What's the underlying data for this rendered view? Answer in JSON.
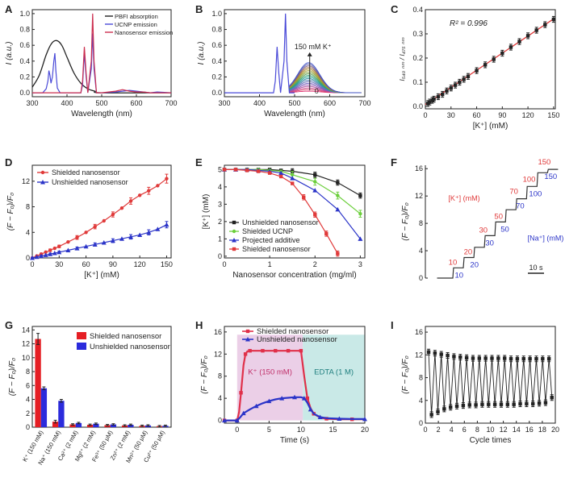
{
  "panels": [
    {
      "letter": "A",
      "chart_data": {
        "type": "line",
        "xlabel": "Wavelength (nm)",
        "ylabel": "I (a.u.)",
        "xlim": [
          300,
          700
        ],
        "ylim": [
          -0.05,
          1.05
        ],
        "xticks": [
          300,
          400,
          500,
          600,
          700
        ],
        "yticks": [
          0.0,
          0.2,
          0.4,
          0.6,
          0.8,
          1.0
        ],
        "legend": "top-right",
        "series": [
          {
            "name": "PBFI absorption",
            "color": "#222222",
            "x": [
              300,
              320,
              340,
              355,
              370,
              385,
              400,
              420,
              440,
              460,
              480,
              500,
              700
            ],
            "y": [
              0.07,
              0.22,
              0.48,
              0.62,
              0.66,
              0.6,
              0.45,
              0.25,
              0.12,
              0.05,
              0.02,
              0.0,
              0.0
            ]
          },
          {
            "name": "UCNP emission",
            "color": "#4a4ad8",
            "x": [
              300,
              330,
              340,
              345,
              348,
              351,
              354,
              358,
              362,
              365,
              368,
              372,
              380,
              400,
              440,
              445,
              450,
              455,
              460,
              470,
              474,
              478,
              485,
              500,
              540,
              560,
              580,
              600,
              620,
              640,
              660,
              700
            ],
            "y": [
              0,
              0,
              0.05,
              0.15,
              0.28,
              0.22,
              0.12,
              0.2,
              0.4,
              0.5,
              0.28,
              0.06,
              0,
              0,
              0,
              0.1,
              0.5,
              0.2,
              0,
              0.3,
              0.75,
              0.3,
              0,
              0,
              0.01,
              0.02,
              0.03,
              0.02,
              0.01,
              0,
              0.01,
              0
            ],
            "smooth": false
          },
          {
            "name": "Nanosensor emission",
            "color": "#cc2f4f",
            "x": [
              300,
              440,
              445,
              450,
              455,
              460,
              470,
              474,
              478,
              485,
              500,
              540,
              560,
              580,
              600,
              620,
              640,
              700
            ],
            "y": [
              0,
              0,
              0.15,
              0.58,
              0.25,
              0,
              0.4,
              1.0,
              0.4,
              0,
              0,
              0.02,
              0.04,
              0.02,
              0.01,
              0.01,
              0,
              0
            ],
            "smooth": false
          }
        ]
      }
    },
    {
      "letter": "B",
      "chart_data": {
        "type": "line",
        "xlabel": "Wavelength (nm)",
        "ylabel": "I (a.u.)",
        "xlim": [
          300,
          700
        ],
        "ylim": [
          -0.05,
          1.05
        ],
        "xticks": [
          300,
          400,
          500,
          600,
          700
        ],
        "yticks": [
          0.0,
          0.2,
          0.4,
          0.6,
          0.8,
          1.0
        ],
        "annotations": [
          "150 mM K⁺",
          "0"
        ],
        "peak_series": {
          "color": "#4a4ad8",
          "x": [
            300,
            440,
            445,
            450,
            455,
            460,
            470,
            474,
            478,
            485,
            500
          ],
          "y": [
            0,
            0,
            0.15,
            0.58,
            0.25,
            0,
            0.4,
            1.0,
            0.4,
            0,
            0
          ]
        },
        "family": {
          "center": 540,
          "width": 45,
          "start": 485,
          "end": 690,
          "amplitudes": [
            0.02,
            0.04,
            0.06,
            0.08,
            0.1,
            0.12,
            0.14,
            0.16,
            0.18,
            0.2,
            0.22,
            0.24,
            0.26,
            0.28,
            0.3,
            0.32,
            0.34,
            0.36,
            0.38
          ],
          "colors": [
            "#e03070",
            "#d8406a",
            "#c8488a",
            "#b050a0",
            "#9058b0",
            "#7060c0",
            "#6870b8",
            "#5080b0",
            "#3090a0",
            "#20a090",
            "#30a070",
            "#60a050",
            "#80a040",
            "#a0a030",
            "#b09030",
            "#a07040",
            "#806080",
            "#6060b0",
            "#3d50c8"
          ]
        }
      }
    },
    {
      "letter": "C",
      "chart_data": {
        "type": "scatter",
        "xlabel": "[K⁺] (mM)",
        "ylabel": "I₅₄₀ ₙₘ / I₄₇₅ ₙₘ",
        "xlim": [
          0,
          152
        ],
        "ylim": [
          -0.01,
          0.4
        ],
        "xticks": [
          0,
          30,
          60,
          90,
          120,
          150
        ],
        "yticks": [
          0.0,
          0.1,
          0.2,
          0.3,
          0.4
        ],
        "annotation": "R² = 0.996",
        "fit": {
          "x": [
            0,
            150
          ],
          "y": [
            0.008,
            0.362
          ],
          "color": "#e03a3a"
        },
        "x": [
          3,
          5,
          8,
          10,
          15,
          20,
          25,
          30,
          35,
          40,
          45,
          50,
          60,
          70,
          80,
          90,
          100,
          110,
          120,
          130,
          140,
          150
        ],
        "y": [
          0.012,
          0.018,
          0.025,
          0.03,
          0.04,
          0.05,
          0.064,
          0.076,
          0.088,
          0.1,
          0.112,
          0.124,
          0.148,
          0.172,
          0.195,
          0.22,
          0.245,
          0.268,
          0.292,
          0.315,
          0.338,
          0.36
        ],
        "err": 0.012
      }
    },
    {
      "letter": "D",
      "chart_data": {
        "type": "line",
        "xlabel": "[K⁺] (mM)",
        "ylabel": "(F − F₀)/F₀",
        "xlim": [
          0,
          155
        ],
        "ylim": [
          0,
          14.5
        ],
        "xticks": [
          0,
          30,
          60,
          90,
          120,
          150
        ],
        "yticks": [
          0,
          4,
          8,
          12
        ],
        "legend": "top-left",
        "series": [
          {
            "name": "Shielded nanosensor",
            "color": "#e03a3a",
            "x": [
              0,
              5,
              10,
              15,
              20,
              25,
              30,
              40,
              50,
              60,
              70,
              80,
              90,
              100,
              110,
              120,
              130,
              140,
              150
            ],
            "y": [
              0,
              0.3,
              0.6,
              0.9,
              1.2,
              1.5,
              1.8,
              2.5,
              3.2,
              4.0,
              4.9,
              5.8,
              6.8,
              7.8,
              8.9,
              9.8,
              10.5,
              11.3,
              12.4
            ],
            "err": [
              0.1,
              0.1,
              0.15,
              0.15,
              0.2,
              0.2,
              0.2,
              0.25,
              0.3,
              0.3,
              0.35,
              0.35,
              0.4,
              0.45,
              0.5,
              0.5,
              0.55,
              0.6,
              0.7
            ]
          },
          {
            "name": "Unshielded nanosensor",
            "color": "#2b34c8",
            "x": [
              0,
              5,
              10,
              15,
              20,
              25,
              30,
              40,
              50,
              60,
              70,
              80,
              90,
              100,
              110,
              120,
              130,
              140,
              150
            ],
            "y": [
              0,
              0.15,
              0.3,
              0.45,
              0.6,
              0.75,
              0.9,
              1.2,
              1.5,
              1.8,
              2.1,
              2.4,
              2.7,
              3.0,
              3.3,
              3.6,
              4.0,
              4.5,
              5.2
            ],
            "err": [
              0.1,
              0.1,
              0.1,
              0.1,
              0.15,
              0.15,
              0.15,
              0.2,
              0.2,
              0.25,
              0.25,
              0.3,
              0.3,
              0.35,
              0.35,
              0.4,
              0.4,
              0.45,
              0.5
            ]
          }
        ]
      }
    },
    {
      "letter": "E",
      "chart_data": {
        "type": "line",
        "xlabel": "Nanosensor concentration (mg/ml)",
        "ylabel": "[K⁺] (mM)",
        "xlim": [
          0,
          3.1
        ],
        "ylim": [
          -0.1,
          5.25
        ],
        "xticks": [
          0,
          1,
          2,
          3
        ],
        "yticks": [
          0,
          1,
          2,
          3,
          4,
          5
        ],
        "legend": "bottom-left",
        "series": [
          {
            "name": "Unshielded nanosensor",
            "color": "#222222",
            "x": [
              0,
              0.25,
              0.5,
              0.75,
              1,
              1.25,
              1.5,
              2,
              2.5,
              3
            ],
            "y": [
              5,
              5,
              5,
              5,
              5,
              4.95,
              4.9,
              4.7,
              4.25,
              3.5
            ],
            "err": 0.15
          },
          {
            "name": "Shielded UCNP",
            "color": "#6ccf3c",
            "x": [
              0,
              0.25,
              0.5,
              0.75,
              1,
              1.25,
              1.5,
              2,
              2.5,
              3
            ],
            "y": [
              5,
              5,
              5,
              5,
              4.95,
              4.9,
              4.7,
              4.3,
              3.5,
              2.45
            ],
            "err": 0.2
          },
          {
            "name": "Projected additive",
            "color": "#2b34c8",
            "x": [
              0,
              0.25,
              0.5,
              0.75,
              1,
              1.25,
              1.5,
              2,
              2.5,
              3
            ],
            "y": [
              5,
              5,
              5,
              4.95,
              4.9,
              4.8,
              4.5,
              3.8,
              2.7,
              1.0
            ],
            "err": 0
          },
          {
            "name": "Shielded nanosensor",
            "color": "#e03a3a",
            "x": [
              0,
              0.25,
              0.5,
              0.75,
              1,
              1.25,
              1.5,
              1.75,
              2,
              2.25,
              2.5
            ],
            "y": [
              5,
              5,
              4.95,
              4.9,
              4.8,
              4.6,
              4.2,
              3.4,
              2.4,
              1.3,
              0.15
            ],
            "err": 0.15
          }
        ]
      }
    },
    {
      "letter": "F",
      "chart_data": {
        "type": "line",
        "ylabel": "(F − F₀)/F₀",
        "ylim": [
          0,
          16.5
        ],
        "yticks": [
          0,
          4,
          8,
          12,
          16
        ],
        "scale_bar_label": "10 s",
        "series_labels": {
          "k": "[K⁺] (mM)",
          "na": "[Na⁺] (mM)"
        },
        "steps": [
          0,
          1.5,
          3,
          4.5,
          6.2,
          8.2,
          10,
          11.6,
          13.4,
          15.4,
          15.9
        ],
        "k_labels": [
          "10",
          "20",
          "30",
          "50",
          "70",
          "100",
          "150"
        ],
        "na_labels": [
          "10",
          "20",
          "30",
          "50",
          "70",
          "100",
          "150"
        ]
      }
    },
    {
      "letter": "G",
      "chart_data": {
        "type": "bar",
        "ylabel": "(F − F₀)/F₀",
        "ylim": [
          0,
          14.5
        ],
        "yticks": [
          0,
          2,
          4,
          6,
          8,
          10,
          12,
          14
        ],
        "legend": "top-right",
        "categories": [
          "K⁺ (150 mM)",
          "Na⁺ (150 mM)",
          "Ca²⁺ (2 mM)",
          "Mg²⁺ (2 mM)",
          "Fe³⁺ (50 μM)",
          "Zn²⁺ (2 mM)",
          "Mn²⁺ (50 μM)",
          "Cu²⁺ (50 μM)"
        ],
        "series": [
          {
            "name": "Shielded nanosensor",
            "color": "#e51e24",
            "values": [
              12.7,
              0.8,
              0.4,
              0.35,
              0.3,
              0.25,
              0.2,
              0.15
            ],
            "err": [
              0.8,
              0.2,
              0.1,
              0.1,
              0.1,
              0.1,
              0.1,
              0.1
            ]
          },
          {
            "name": "Unshielded nanosensor",
            "color": "#2b2bdc",
            "values": [
              5.6,
              3.8,
              0.6,
              0.5,
              0.4,
              0.35,
              0.25,
              0.2
            ],
            "err": [
              0.2,
              0.2,
              0.1,
              0.1,
              0.1,
              0.1,
              0.1,
              0.1
            ]
          }
        ]
      }
    },
    {
      "letter": "H",
      "chart_data": {
        "type": "line",
        "xlabel": "Time (s)",
        "ylabel": "(F − F₀)/F₀",
        "xlim": [
          -2,
          20
        ],
        "ylim": [
          -0.5,
          17
        ],
        "xticks": [
          0,
          5,
          10,
          15,
          20
        ],
        "yticks": [
          0,
          4,
          8,
          12,
          16
        ],
        "legend": "top",
        "regions": [
          {
            "label": "K⁺ (150 mM)",
            "x": [
              0,
              10.3
            ],
            "color": "#e7c7e3"
          },
          {
            "label": "EDTA (1 M)",
            "x": [
              10.3,
              20
            ],
            "color": "#bfe5e3"
          }
        ],
        "series": [
          {
            "name": "Shielded nanosensor",
            "color": "#e0304a",
            "x": [
              -2,
              -1,
              0,
              0.3,
              0.6,
              1,
              1.3,
              1.6,
              2,
              3,
              4,
              5,
              6,
              7,
              8,
              9,
              10,
              10.5,
              11,
              11.5,
              12,
              13,
              14,
              16,
              18,
              20
            ],
            "y": [
              0,
              0,
              0,
              1.5,
              5,
              10,
              12,
              12.5,
              12.6,
              12.6,
              12.6,
              12.6,
              12.6,
              12.6,
              12.6,
              12.6,
              12.6,
              8,
              4,
              2.2,
              1.2,
              0.5,
              0.3,
              0.2,
              0.2,
              0.2
            ]
          },
          {
            "name": "Unshielded nanosensor",
            "color": "#2b34c8",
            "x": [
              -2,
              -1,
              0,
              0.5,
              1,
              2,
              3,
              4,
              5,
              6,
              7,
              8,
              9,
              10,
              10.5,
              11,
              11.5,
              12,
              13,
              14,
              16,
              18,
              20
            ],
            "y": [
              0,
              0,
              0,
              0.6,
              1.3,
              2.0,
              2.6,
              3.1,
              3.5,
              3.8,
              4.0,
              4.1,
              4.2,
              4.2,
              4.0,
              3.2,
              2.0,
              1.2,
              0.6,
              0.4,
              0.3,
              0.25,
              0.25
            ]
          }
        ]
      }
    },
    {
      "letter": "I",
      "chart_data": {
        "type": "line",
        "xlabel": "Cycle times",
        "ylabel": "(F − F₀)/F₀",
        "xlim": [
          0,
          20
        ],
        "ylim": [
          0,
          17
        ],
        "xticks": [
          0,
          2,
          4,
          6,
          8,
          10,
          12,
          14,
          16,
          18,
          20
        ],
        "yticks": [
          0,
          4,
          8,
          12,
          16
        ],
        "series": [
          {
            "name": "",
            "color": "#222222",
            "high": [
              12.5,
              12.3,
              12.1,
              11.9,
              11.7,
              11.6,
              11.5,
              11.4,
              11.4,
              11.4,
              11.4,
              11.4,
              11.4,
              11.3,
              11.3,
              11.3,
              11.3,
              11.3,
              11.3,
              11.3
            ],
            "low": [
              1.5,
              2.0,
              2.5,
              2.8,
              3.0,
              3.1,
              3.2,
              3.2,
              3.3,
              3.3,
              3.3,
              3.3,
              3.3,
              3.3,
              3.4,
              3.4,
              3.4,
              3.5,
              3.6,
              4.5
            ],
            "err": 0.5
          }
        ]
      }
    }
  ]
}
